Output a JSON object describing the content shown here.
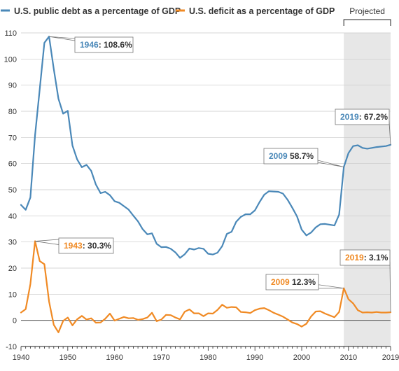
{
  "chart_data": {
    "type": "line",
    "legend_position": "top-left",
    "grid": "horizontal",
    "xlim": [
      1940,
      2019
    ],
    "ylim": [
      -10,
      110
    ],
    "x_ticks": [
      1940,
      1950,
      1960,
      1970,
      1980,
      1990,
      2000,
      2010,
      2019
    ],
    "x_tick_labels": [
      "1940",
      "1950",
      "1960",
      "1970",
      "1980",
      "1990",
      "2000",
      "2010",
      "2019"
    ],
    "y_ticks": [
      -10,
      0,
      10,
      20,
      30,
      40,
      50,
      60,
      70,
      80,
      90,
      100,
      110
    ],
    "y_tick_labels": [
      "-10",
      "0",
      "10",
      "20",
      "30",
      "40",
      "50",
      "60",
      "70",
      "80",
      "90",
      "100",
      "110"
    ],
    "projected": {
      "start": 2009,
      "end": 2019,
      "label": "Projected"
    },
    "series": [
      {
        "name": "U.S. public debt as a percentage of GDP",
        "color": "#4a88b8",
        "x": [
          1940,
          1941,
          1942,
          1943,
          1944,
          1945,
          1946,
          1947,
          1948,
          1949,
          1950,
          1951,
          1952,
          1953,
          1954,
          1955,
          1956,
          1957,
          1958,
          1959,
          1960,
          1961,
          1962,
          1963,
          1964,
          1965,
          1966,
          1967,
          1968,
          1969,
          1970,
          1971,
          1972,
          1973,
          1974,
          1975,
          1976,
          1977,
          1978,
          1979,
          1980,
          1981,
          1982,
          1983,
          1984,
          1985,
          1986,
          1987,
          1988,
          1989,
          1990,
          1991,
          1992,
          1993,
          1994,
          1995,
          1996,
          1997,
          1998,
          1999,
          2000,
          2001,
          2002,
          2003,
          2004,
          2005,
          2006,
          2007,
          2008,
          2009,
          2010,
          2011,
          2012,
          2013,
          2014,
          2015,
          2016,
          2017,
          2018,
          2019
        ],
        "values": [
          44.2,
          42.3,
          47.0,
          70.9,
          88.3,
          106.2,
          108.6,
          96.2,
          84.8,
          79.1,
          80.2,
          66.9,
          61.6,
          58.6,
          59.5,
          57.2,
          52.0,
          48.7,
          49.2,
          47.9,
          45.6,
          45.0,
          43.7,
          42.4,
          40.1,
          37.9,
          34.9,
          32.9,
          33.3,
          29.3,
          28.0,
          28.1,
          27.4,
          26.0,
          23.9,
          25.3,
          27.5,
          27.1,
          27.7,
          27.4,
          25.5,
          25.2,
          25.9,
          28.4,
          33.1,
          33.9,
          37.7,
          39.6,
          40.6,
          40.6,
          42.1,
          45.3,
          48.1,
          49.4,
          49.3,
          49.2,
          48.5,
          46.1,
          43.1,
          39.8,
          34.7,
          32.5,
          33.6,
          35.6,
          36.8,
          36.9,
          36.6,
          36.3,
          40.5,
          58.7,
          64.0,
          66.7,
          67.0,
          66.0,
          65.7,
          66.0,
          66.3,
          66.5,
          66.7,
          67.2
        ],
        "annotations": [
          {
            "year": "1946",
            "sep": ": ",
            "value": "108.6%",
            "x": 1946,
            "y": 108.6
          },
          {
            "year": "2009",
            "sep": " ",
            "value": "58.7%",
            "x": 2009,
            "y": 58.7
          },
          {
            "year": "2019",
            "sep": ": ",
            "value": "67.2%",
            "x": 2019,
            "y": 67.2
          }
        ]
      },
      {
        "name": "U.S. deficit as a percentage of GDP",
        "color": "#f08a24",
        "x": [
          1940,
          1941,
          1942,
          1943,
          1944,
          1945,
          1946,
          1947,
          1948,
          1949,
          1950,
          1951,
          1952,
          1953,
          1954,
          1955,
          1956,
          1957,
          1958,
          1959,
          1960,
          1961,
          1962,
          1963,
          1964,
          1965,
          1966,
          1967,
          1968,
          1969,
          1970,
          1971,
          1972,
          1973,
          1974,
          1975,
          1976,
          1977,
          1978,
          1979,
          1980,
          1981,
          1982,
          1983,
          1984,
          1985,
          1986,
          1987,
          1988,
          1989,
          1990,
          1991,
          1992,
          1993,
          1994,
          1995,
          1996,
          1997,
          1998,
          1999,
          2000,
          2001,
          2002,
          2003,
          2004,
          2005,
          2006,
          2007,
          2008,
          2009,
          2010,
          2011,
          2012,
          2013,
          2014,
          2015,
          2016,
          2017,
          2018,
          2019
        ],
        "values": [
          3.0,
          4.3,
          13.9,
          30.3,
          22.7,
          21.5,
          7.2,
          -1.7,
          -4.6,
          -0.2,
          1.1,
          -1.9,
          0.4,
          1.7,
          0.3,
          0.8,
          -0.9,
          -0.8,
          0.6,
          2.6,
          -0.1,
          0.6,
          1.3,
          0.8,
          0.9,
          0.2,
          0.5,
          1.1,
          2.9,
          -0.3,
          0.3,
          2.1,
          2.0,
          1.1,
          0.4,
          3.3,
          4.2,
          2.7,
          2.7,
          1.6,
          2.7,
          2.6,
          4.0,
          6.0,
          4.8,
          5.1,
          5.0,
          3.2,
          3.1,
          2.8,
          3.9,
          4.5,
          4.7,
          3.9,
          2.9,
          2.2,
          1.4,
          0.3,
          -0.8,
          -1.4,
          -2.4,
          -1.3,
          1.5,
          3.4,
          3.5,
          2.6,
          1.9,
          1.2,
          3.2,
          12.3,
          8.1,
          6.5,
          3.9,
          3.0,
          3.1,
          3.0,
          3.2,
          3.0,
          3.0,
          3.1
        ],
        "annotations": [
          {
            "year": "1943",
            "sep": ": ",
            "value": "30.3%",
            "x": 1943,
            "y": 30.3
          },
          {
            "year": "2009",
            "sep": " ",
            "value": "12.3%",
            "x": 2009,
            "y": 12.3
          },
          {
            "year": "2019",
            "sep": ": ",
            "value": "3.1%",
            "x": 2019,
            "y": 3.1
          }
        ]
      }
    ]
  }
}
